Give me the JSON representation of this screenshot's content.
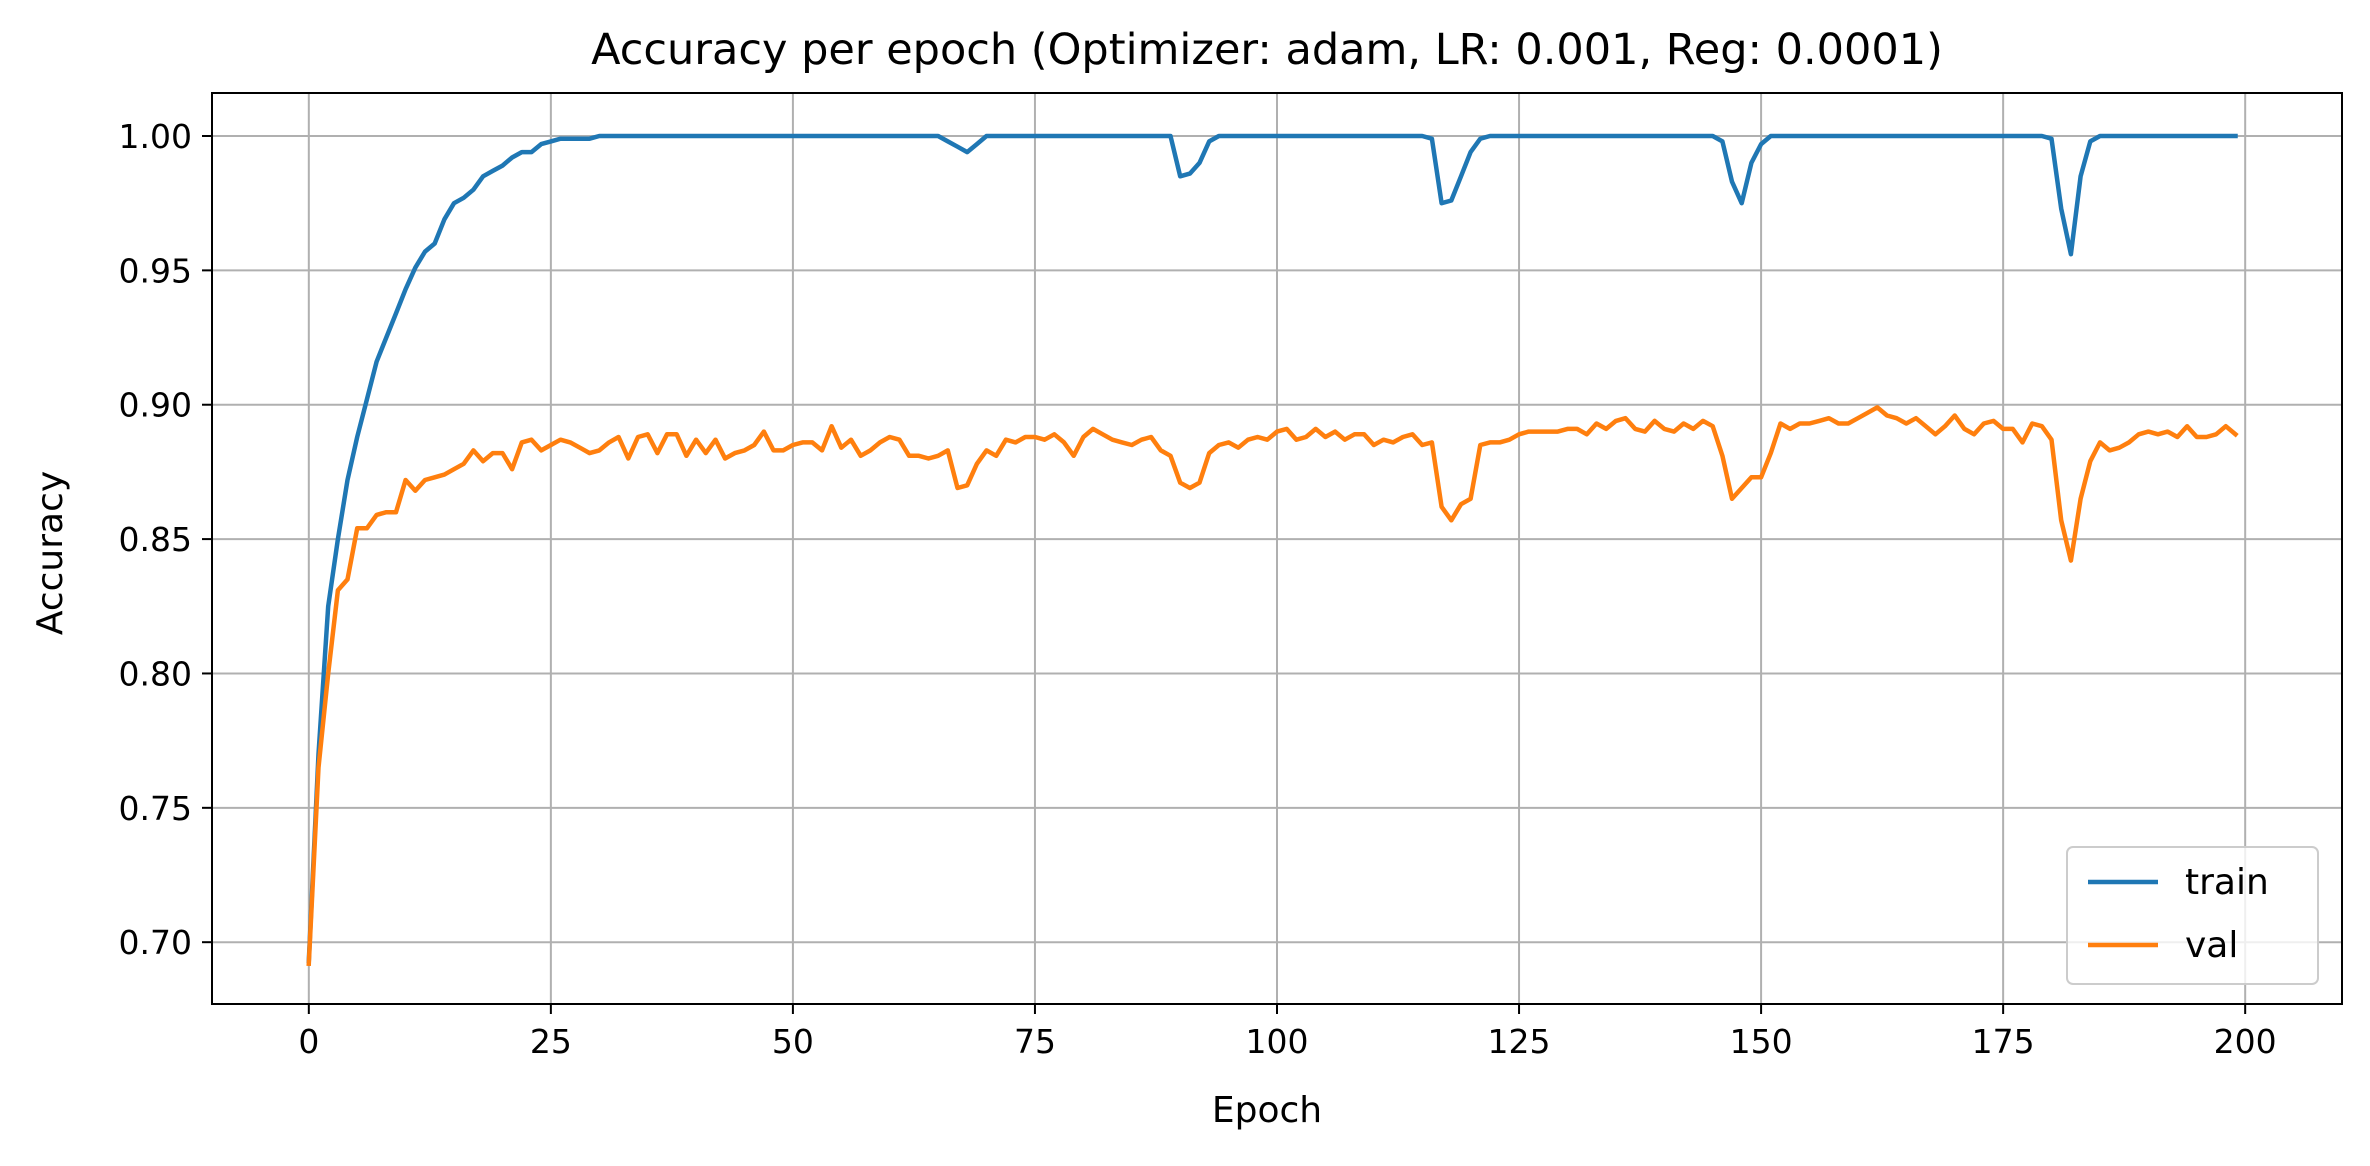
{
  "chart_data": {
    "type": "line",
    "title": "Accuracy per epoch (Optimizer: adam, LR: 0.001, Reg: 0.0001)",
    "xlabel": "Epoch",
    "ylabel": "Accuracy",
    "xlim": [
      -10,
      210
    ],
    "ylim": [
      0.677,
      1.016
    ],
    "xticks": [
      0,
      25,
      50,
      75,
      100,
      125,
      150,
      175,
      200
    ],
    "yticks": [
      0.7,
      0.75,
      0.8,
      0.85,
      0.9,
      0.95,
      1.0
    ],
    "xtick_labels": [
      "0",
      "25",
      "50",
      "75",
      "100",
      "125",
      "150",
      "175",
      "200"
    ],
    "ytick_labels": [
      "0.70",
      "0.75",
      "0.80",
      "0.85",
      "0.90",
      "0.95",
      "1.00"
    ],
    "grid": true,
    "legend_position": "lower-right",
    "series": [
      {
        "name": "train",
        "color": "#1f77b4",
        "points": [
          [
            0,
            0.693
          ],
          [
            1,
            0.77
          ],
          [
            2,
            0.825
          ],
          [
            3,
            0.85
          ],
          [
            4,
            0.872
          ],
          [
            5,
            0.888
          ],
          [
            6,
            0.902
          ],
          [
            7,
            0.916
          ],
          [
            8,
            0.925
          ],
          [
            9,
            0.934
          ],
          [
            10,
            0.943
          ],
          [
            11,
            0.951
          ],
          [
            12,
            0.957
          ],
          [
            13,
            0.96
          ],
          [
            14,
            0.969
          ],
          [
            15,
            0.975
          ],
          [
            16,
            0.977
          ],
          [
            17,
            0.98
          ],
          [
            18,
            0.985
          ],
          [
            19,
            0.987
          ],
          [
            20,
            0.989
          ],
          [
            21,
            0.992
          ],
          [
            22,
            0.994
          ],
          [
            23,
            0.994
          ],
          [
            24,
            0.997
          ],
          [
            25,
            0.998
          ],
          [
            26,
            0.999
          ],
          [
            27,
            0.999
          ],
          [
            28,
            0.999
          ],
          [
            29,
            0.999
          ],
          [
            30,
            1.0
          ],
          [
            35,
            1.0
          ],
          [
            40,
            1.0
          ],
          [
            45,
            1.0
          ],
          [
            50,
            1.0
          ],
          [
            55,
            1.0
          ],
          [
            60,
            1.0
          ],
          [
            65,
            1.0
          ],
          [
            66,
            0.998
          ],
          [
            67,
            0.996
          ],
          [
            68,
            0.994
          ],
          [
            69,
            0.997
          ],
          [
            70,
            1.0
          ],
          [
            75,
            1.0
          ],
          [
            80,
            1.0
          ],
          [
            85,
            1.0
          ],
          [
            89,
            1.0
          ],
          [
            90,
            0.985
          ],
          [
            91,
            0.986
          ],
          [
            92,
            0.99
          ],
          [
            93,
            0.998
          ],
          [
            94,
            1.0
          ],
          [
            100,
            1.0
          ],
          [
            105,
            1.0
          ],
          [
            110,
            1.0
          ],
          [
            115,
            1.0
          ],
          [
            116,
            0.999
          ],
          [
            117,
            0.975
          ],
          [
            118,
            0.976
          ],
          [
            119,
            0.985
          ],
          [
            120,
            0.994
          ],
          [
            121,
            0.999
          ],
          [
            122,
            1.0
          ],
          [
            125,
            1.0
          ],
          [
            130,
            1.0
          ],
          [
            135,
            1.0
          ],
          [
            140,
            1.0
          ],
          [
            145,
            1.0
          ],
          [
            146,
            0.998
          ],
          [
            147,
            0.983
          ],
          [
            148,
            0.975
          ],
          [
            149,
            0.99
          ],
          [
            150,
            0.997
          ],
          [
            151,
            1.0
          ],
          [
            155,
            1.0
          ],
          [
            160,
            1.0
          ],
          [
            165,
            1.0
          ],
          [
            170,
            1.0
          ],
          [
            175,
            1.0
          ],
          [
            179,
            1.0
          ],
          [
            180,
            0.999
          ],
          [
            181,
            0.973
          ],
          [
            182,
            0.956
          ],
          [
            183,
            0.985
          ],
          [
            184,
            0.998
          ],
          [
            185,
            1.0
          ],
          [
            190,
            1.0
          ],
          [
            195,
            1.0
          ],
          [
            199,
            1.0
          ]
        ]
      },
      {
        "name": "val",
        "color": "#ff7f0e",
        "points": [
          [
            0,
            0.692
          ],
          [
            1,
            0.765
          ],
          [
            2,
            0.8
          ],
          [
            3,
            0.831
          ],
          [
            4,
            0.835
          ],
          [
            5,
            0.854
          ],
          [
            6,
            0.854
          ],
          [
            7,
            0.859
          ],
          [
            8,
            0.86
          ],
          [
            9,
            0.86
          ],
          [
            10,
            0.872
          ],
          [
            11,
            0.868
          ],
          [
            12,
            0.872
          ],
          [
            13,
            0.873
          ],
          [
            14,
            0.874
          ],
          [
            15,
            0.876
          ],
          [
            16,
            0.878
          ],
          [
            17,
            0.883
          ],
          [
            18,
            0.879
          ],
          [
            19,
            0.882
          ],
          [
            20,
            0.882
          ],
          [
            21,
            0.876
          ],
          [
            22,
            0.886
          ],
          [
            23,
            0.887
          ],
          [
            24,
            0.883
          ],
          [
            25,
            0.885
          ],
          [
            26,
            0.887
          ],
          [
            27,
            0.886
          ],
          [
            28,
            0.884
          ],
          [
            29,
            0.882
          ],
          [
            30,
            0.883
          ],
          [
            31,
            0.886
          ],
          [
            32,
            0.888
          ],
          [
            33,
            0.88
          ],
          [
            34,
            0.888
          ],
          [
            35,
            0.889
          ],
          [
            36,
            0.882
          ],
          [
            37,
            0.889
          ],
          [
            38,
            0.889
          ],
          [
            39,
            0.881
          ],
          [
            40,
            0.887
          ],
          [
            41,
            0.882
          ],
          [
            42,
            0.887
          ],
          [
            43,
            0.88
          ],
          [
            44,
            0.882
          ],
          [
            45,
            0.883
          ],
          [
            46,
            0.885
          ],
          [
            47,
            0.89
          ],
          [
            48,
            0.883
          ],
          [
            49,
            0.883
          ],
          [
            50,
            0.885
          ],
          [
            51,
            0.886
          ],
          [
            52,
            0.886
          ],
          [
            53,
            0.883
          ],
          [
            54,
            0.892
          ],
          [
            55,
            0.884
          ],
          [
            56,
            0.887
          ],
          [
            57,
            0.881
          ],
          [
            58,
            0.883
          ],
          [
            59,
            0.886
          ],
          [
            60,
            0.888
          ],
          [
            61,
            0.887
          ],
          [
            62,
            0.881
          ],
          [
            63,
            0.881
          ],
          [
            64,
            0.88
          ],
          [
            65,
            0.881
          ],
          [
            66,
            0.883
          ],
          [
            67,
            0.869
          ],
          [
            68,
            0.87
          ],
          [
            69,
            0.878
          ],
          [
            70,
            0.883
          ],
          [
            71,
            0.881
          ],
          [
            72,
            0.887
          ],
          [
            73,
            0.886
          ],
          [
            74,
            0.888
          ],
          [
            75,
            0.888
          ],
          [
            76,
            0.887
          ],
          [
            77,
            0.889
          ],
          [
            78,
            0.886
          ],
          [
            79,
            0.881
          ],
          [
            80,
            0.888
          ],
          [
            81,
            0.891
          ],
          [
            82,
            0.889
          ],
          [
            83,
            0.887
          ],
          [
            84,
            0.886
          ],
          [
            85,
            0.885
          ],
          [
            86,
            0.887
          ],
          [
            87,
            0.888
          ],
          [
            88,
            0.883
          ],
          [
            89,
            0.881
          ],
          [
            90,
            0.871
          ],
          [
            91,
            0.869
          ],
          [
            92,
            0.871
          ],
          [
            93,
            0.882
          ],
          [
            94,
            0.885
          ],
          [
            95,
            0.886
          ],
          [
            96,
            0.884
          ],
          [
            97,
            0.887
          ],
          [
            98,
            0.888
          ],
          [
            99,
            0.887
          ],
          [
            100,
            0.89
          ],
          [
            101,
            0.891
          ],
          [
            102,
            0.887
          ],
          [
            103,
            0.888
          ],
          [
            104,
            0.891
          ],
          [
            105,
            0.888
          ],
          [
            106,
            0.89
          ],
          [
            107,
            0.887
          ],
          [
            108,
            0.889
          ],
          [
            109,
            0.889
          ],
          [
            110,
            0.885
          ],
          [
            111,
            0.887
          ],
          [
            112,
            0.886
          ],
          [
            113,
            0.888
          ],
          [
            114,
            0.889
          ],
          [
            115,
            0.885
          ],
          [
            116,
            0.886
          ],
          [
            117,
            0.862
          ],
          [
            118,
            0.857
          ],
          [
            119,
            0.863
          ],
          [
            120,
            0.865
          ],
          [
            121,
            0.885
          ],
          [
            122,
            0.886
          ],
          [
            123,
            0.886
          ],
          [
            124,
            0.887
          ],
          [
            125,
            0.889
          ],
          [
            126,
            0.89
          ],
          [
            127,
            0.89
          ],
          [
            128,
            0.89
          ],
          [
            129,
            0.89
          ],
          [
            130,
            0.891
          ],
          [
            131,
            0.891
          ],
          [
            132,
            0.889
          ],
          [
            133,
            0.893
          ],
          [
            134,
            0.891
          ],
          [
            135,
            0.894
          ],
          [
            136,
            0.895
          ],
          [
            137,
            0.891
          ],
          [
            138,
            0.89
          ],
          [
            139,
            0.894
          ],
          [
            140,
            0.891
          ],
          [
            141,
            0.89
          ],
          [
            142,
            0.893
          ],
          [
            143,
            0.891
          ],
          [
            144,
            0.894
          ],
          [
            145,
            0.892
          ],
          [
            146,
            0.881
          ],
          [
            147,
            0.865
          ],
          [
            148,
            0.869
          ],
          [
            149,
            0.873
          ],
          [
            150,
            0.873
          ],
          [
            151,
            0.882
          ],
          [
            152,
            0.893
          ],
          [
            153,
            0.891
          ],
          [
            154,
            0.893
          ],
          [
            155,
            0.893
          ],
          [
            156,
            0.894
          ],
          [
            157,
            0.895
          ],
          [
            158,
            0.893
          ],
          [
            159,
            0.893
          ],
          [
            160,
            0.895
          ],
          [
            161,
            0.897
          ],
          [
            162,
            0.899
          ],
          [
            163,
            0.896
          ],
          [
            164,
            0.895
          ],
          [
            165,
            0.893
          ],
          [
            166,
            0.895
          ],
          [
            167,
            0.892
          ],
          [
            168,
            0.889
          ],
          [
            169,
            0.892
          ],
          [
            170,
            0.896
          ],
          [
            171,
            0.891
          ],
          [
            172,
            0.889
          ],
          [
            173,
            0.893
          ],
          [
            174,
            0.894
          ],
          [
            175,
            0.891
          ],
          [
            176,
            0.891
          ],
          [
            177,
            0.886
          ],
          [
            178,
            0.893
          ],
          [
            179,
            0.892
          ],
          [
            180,
            0.887
          ],
          [
            181,
            0.857
          ],
          [
            182,
            0.842
          ],
          [
            183,
            0.865
          ],
          [
            184,
            0.879
          ],
          [
            185,
            0.886
          ],
          [
            186,
            0.883
          ],
          [
            187,
            0.884
          ],
          [
            188,
            0.886
          ],
          [
            189,
            0.889
          ],
          [
            190,
            0.89
          ],
          [
            191,
            0.889
          ],
          [
            192,
            0.89
          ],
          [
            193,
            0.888
          ],
          [
            194,
            0.892
          ],
          [
            195,
            0.888
          ],
          [
            196,
            0.888
          ],
          [
            197,
            0.889
          ],
          [
            198,
            0.892
          ],
          [
            199,
            0.889
          ]
        ]
      }
    ]
  }
}
